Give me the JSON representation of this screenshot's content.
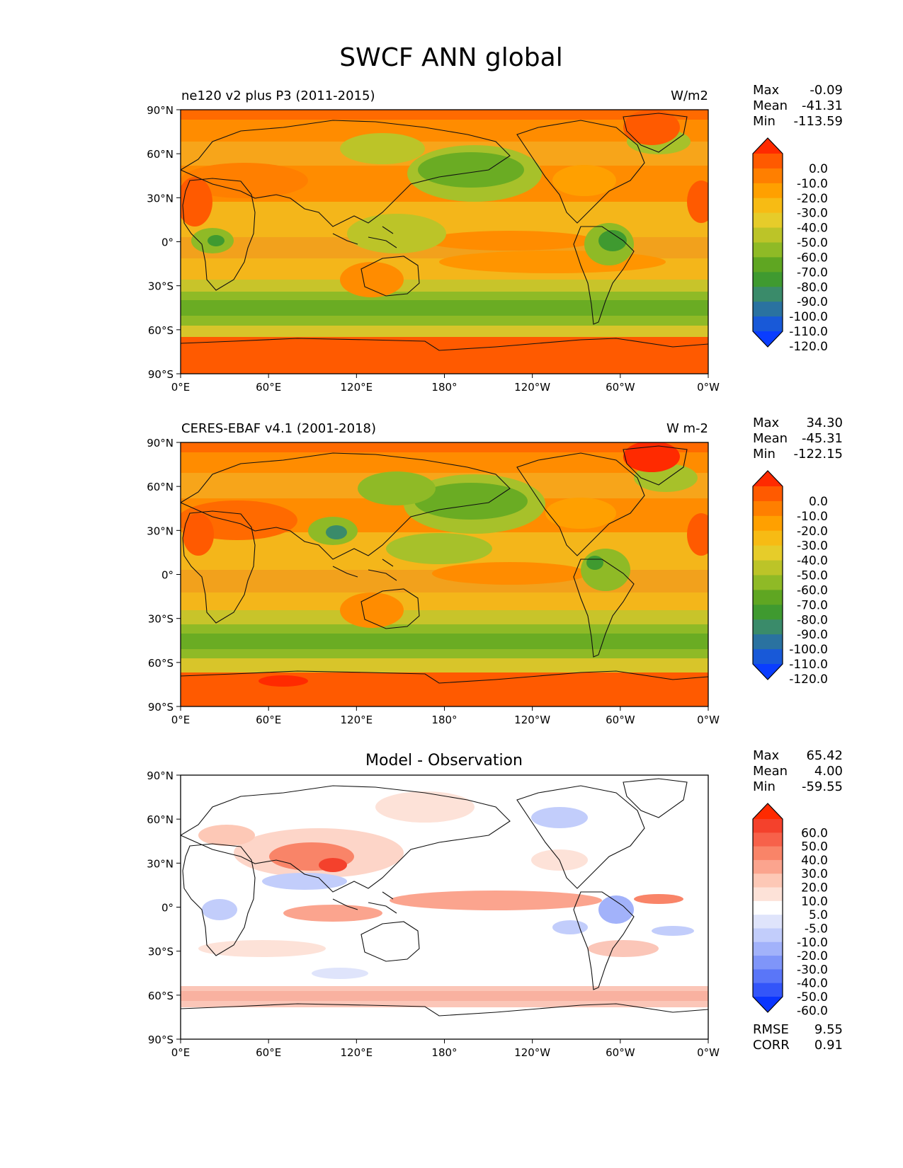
{
  "title": "SWCF ANN global",
  "lat_ticks": [
    "90°N",
    "60°N",
    "30°N",
    "0°",
    "30°S",
    "60°S",
    "90°S"
  ],
  "lon_ticks": [
    "0°E",
    "60°E",
    "120°E",
    "180°",
    "120°W",
    "60°W",
    "0°W"
  ],
  "panels": [
    {
      "id": "test",
      "left_title": "ne120 v2 plus P3 (2011-2015)",
      "center_title": "",
      "units": "W/m2",
      "stats": [
        {
          "label": "Max",
          "value": "-0.09"
        },
        {
          "label": "Mean",
          "value": "-41.31"
        },
        {
          "label": "Min",
          "value": "-113.59"
        }
      ],
      "colorbar_labels": [
        "0.0",
        "-10.0",
        "-20.0",
        "-30.0",
        "-40.0",
        "-50.0",
        "-60.0",
        "-70.0",
        "-80.0",
        "-90.0",
        "-100.0",
        "-110.0",
        "-120.0"
      ],
      "colorbar_colors": [
        "#ff2a00",
        "#ff5a00",
        "#ff7f00",
        "#ffa000",
        "#f7bb14",
        "#e6cc2a",
        "#bcc428",
        "#8fba26",
        "#5fa622",
        "#3f9a30",
        "#3a8b6a",
        "#2a72a0",
        "#1859d8",
        "#0a3dff"
      ]
    },
    {
      "id": "reference",
      "left_title": "CERES-EBAF v4.1 (2001-2018)",
      "center_title": "",
      "units": "W m-2",
      "stats": [
        {
          "label": "Max",
          "value": "34.30"
        },
        {
          "label": "Mean",
          "value": "-45.31"
        },
        {
          "label": "Min",
          "value": "-122.15"
        }
      ],
      "colorbar_labels": [
        "0.0",
        "-10.0",
        "-20.0",
        "-30.0",
        "-40.0",
        "-50.0",
        "-60.0",
        "-70.0",
        "-80.0",
        "-90.0",
        "-100.0",
        "-110.0",
        "-120.0"
      ],
      "colorbar_colors": [
        "#ff2a00",
        "#ff5a00",
        "#ff7f00",
        "#ffa000",
        "#f7bb14",
        "#e6cc2a",
        "#bcc428",
        "#8fba26",
        "#5fa622",
        "#3f9a30",
        "#3a8b6a",
        "#2a72a0",
        "#1859d8",
        "#0a3dff"
      ]
    },
    {
      "id": "difference",
      "left_title": "",
      "center_title": "Model - Observation",
      "units": "",
      "stats": [
        {
          "label": "Max",
          "value": "65.42"
        },
        {
          "label": "Mean",
          "value": "4.00"
        },
        {
          "label": "Min",
          "value": "-59.55"
        }
      ],
      "extra_stats": [
        {
          "label": "RMSE",
          "value": "9.55"
        },
        {
          "label": "CORR",
          "value": "0.91"
        }
      ],
      "colorbar_labels": [
        "60.0",
        "50.0",
        "40.0",
        "30.0",
        "20.0",
        "10.0",
        "5.0",
        "-5.0",
        "-10.0",
        "-20.0",
        "-30.0",
        "-40.0",
        "-50.0",
        "-60.0"
      ],
      "colorbar_colors": [
        "#ff2a00",
        "#f4412c",
        "#f7614a",
        "#f98468",
        "#fba48e",
        "#fdc8b6",
        "#fde2d8",
        "#ffffff",
        "#dfe4fb",
        "#c2cdfb",
        "#a2b2fa",
        "#7f95f9",
        "#5a76f8",
        "#3355f9",
        "#0a35ff"
      ]
    }
  ]
}
